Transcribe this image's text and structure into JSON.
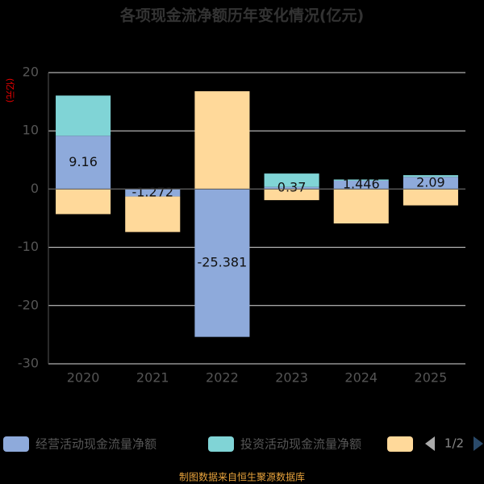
{
  "chart_data": {
    "type": "bar",
    "stacked": true,
    "title": "各项现金流净额历年变化情况(亿元)",
    "y_label": "(亿元)",
    "categories": [
      "2020",
      "2021",
      "2022",
      "2023",
      "2024",
      "2025"
    ],
    "series": [
      {
        "name": "经营活动现金流量净额",
        "color": "#8eaadb",
        "values": [
          9.16,
          -1.272,
          -25.381,
          0.37,
          1.446,
          2.09
        ],
        "show_labels": true
      },
      {
        "name": "投资活动现金流量净额",
        "color": "#80d4d6",
        "values": [
          6.9,
          0,
          0,
          2.3,
          0.2,
          0.3
        ]
      },
      {
        "color": "#ffd99a",
        "values": [
          -4.3,
          -6.1,
          16.8,
          -1.9,
          -5.9,
          -2.8
        ]
      }
    ],
    "ylim": [
      -30,
      20
    ],
    "yticks": [
      -30,
      -20,
      -10,
      0,
      10,
      20
    ],
    "grid": true,
    "legend_page": "1/2",
    "footer": "制图数据来自恒生聚源数据库"
  }
}
